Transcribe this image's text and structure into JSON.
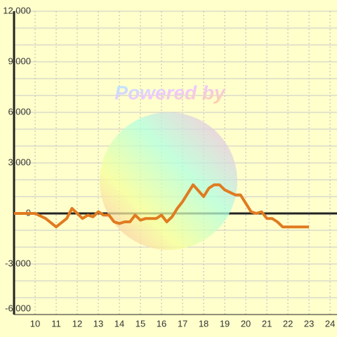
{
  "chart_data": {
    "type": "line",
    "watermark": "Powered by",
    "x": [
      9,
      10,
      10.5,
      11,
      11.5,
      11.75,
      12.25,
      12.5,
      12.75,
      13,
      13.25,
      13.5,
      13.75,
      14,
      14.25,
      14.5,
      14.75,
      15,
      15.25,
      15.5,
      15.75,
      16,
      16.25,
      16.5,
      16.75,
      17,
      17.5,
      18,
      18.25,
      18.5,
      18.75,
      19,
      19.5,
      19.75,
      20.25,
      20.5,
      20.75,
      21,
      21.25,
      21.5,
      21.75,
      22,
      23
    ],
    "series": [
      {
        "color": "#e07b20",
        "values": [
          0,
          0,
          -300,
          -800,
          -300,
          300,
          -300,
          -100,
          -200,
          100,
          -100,
          -100,
          -500,
          -600,
          -500,
          -500,
          -100,
          -400,
          -300,
          -300,
          -300,
          -100,
          -500,
          -200,
          300,
          700,
          1700,
          1000,
          1500,
          1700,
          1700,
          1400,
          1100,
          1100,
          100,
          0,
          100,
          -300,
          -300,
          -500,
          -800,
          -800,
          -800
        ]
      }
    ],
    "xlim": [
      9,
      24.33
    ],
    "xticks": [
      10,
      11,
      12,
      13,
      14,
      15,
      16,
      17,
      18,
      19,
      20,
      21,
      22,
      23,
      24
    ],
    "ylim": [
      -6000,
      12000
    ],
    "yticks": [
      {
        "value": -6000,
        "label": "-6,000"
      },
      {
        "value": -3000,
        "label": "-3,000"
      },
      0,
      {
        "value": 3000,
        "label": "3,000"
      },
      {
        "value": 6000,
        "label": "6,000"
      },
      {
        "value": 9000,
        "label": "9,000"
      },
      {
        "value": 12000,
        "label": "12,000"
      }
    ],
    "y_minor_ticks": [
      -5000,
      -4000,
      -2000,
      -1000,
      1000,
      2000,
      4000,
      5000,
      7000,
      8000,
      10000,
      11000
    ],
    "grid": true
  }
}
